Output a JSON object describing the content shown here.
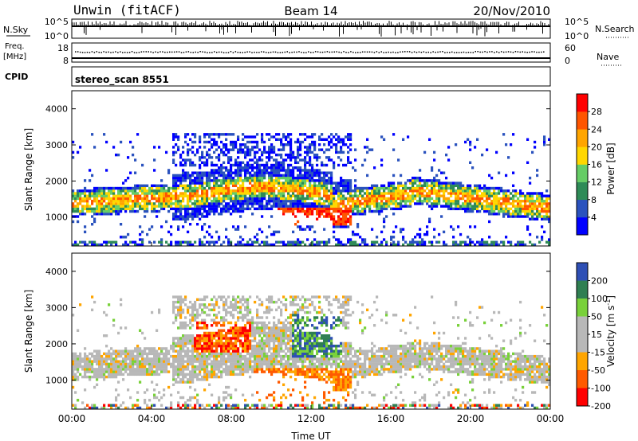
{
  "header": {
    "station": "Unwin (fitACF)",
    "beam": "Beam 14",
    "date": "20/Nov/2010"
  },
  "strip_nsky": {
    "left_label": "N.Sky",
    "right_label": "N.Search",
    "left_ticks": [
      "10^5",
      "10^0"
    ],
    "right_ticks": [
      "10^5",
      "10^0"
    ]
  },
  "strip_freq": {
    "left_label_1": "Freq.",
    "left_label_2": "[MHz]",
    "right_label": "Nave",
    "left_ticks": [
      "18",
      "8"
    ],
    "right_ticks": [
      "60",
      "0"
    ]
  },
  "strip_cpid": {
    "label": "CPID",
    "value": "stereo_scan 8551"
  },
  "colors": {
    "power": [
      "#0000ff",
      "#2a52be",
      "#2e8b57",
      "#66cd66",
      "#ffd700",
      "#ffa500",
      "#ff5500",
      "#ff0000"
    ],
    "velocity": [
      "#2e4fb5",
      "#2f7f52",
      "#79d13a",
      "#b8b8b8",
      "#b8b8b8",
      "#ffa500",
      "#ff5a00",
      "#ff0000"
    ]
  },
  "chart_data": [
    {
      "type": "heatmap",
      "quantity": "power",
      "ylabel": "Slant Range [km]",
      "ylim": [
        200,
        4500
      ],
      "yticks": [
        "1000",
        "2000",
        "3000",
        "4000"
      ],
      "xlim": [
        "00:00",
        "24:00"
      ],
      "colorbar_label": "Power [dB]",
      "colorbar_ticks": [
        "4",
        "8",
        "12",
        "16",
        "20",
        "24",
        "28"
      ]
    },
    {
      "type": "heatmap",
      "quantity": "velocity",
      "ylabel": "Slant Range [km]",
      "xlabel": "Time UT",
      "ylim": [
        200,
        4500
      ],
      "yticks": [
        "1000",
        "2000",
        "3000",
        "4000"
      ],
      "xticks": [
        "00:00",
        "04:00",
        "08:00",
        "12:00",
        "16:00",
        "20:00",
        "00:00"
      ],
      "colorbar_label": "Velocity [m s^-1]",
      "colorbar_ticks": [
        "200",
        "100",
        "50",
        "15",
        "-15",
        "-50",
        "-100",
        "-200"
      ]
    }
  ]
}
